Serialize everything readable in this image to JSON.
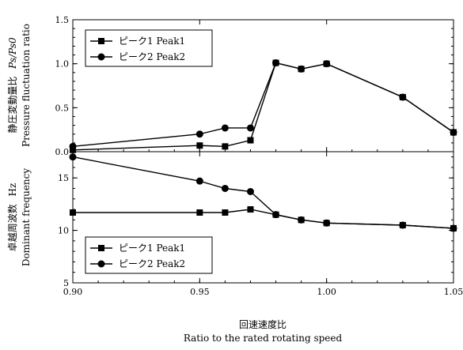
{
  "chart_data": [
    {
      "type": "line",
      "ylabel_jp": "静圧変動量比",
      "ylabel_symbol": "Ps/Ps0",
      "ylabel_en": "Pressure fluctuation ratio",
      "ylim": [
        0,
        1.5
      ],
      "yticks": [
        "0.0",
        "0.5",
        "1.0",
        "1.5"
      ],
      "legend_position": "top-left",
      "series": [
        {
          "name": "ピーク1 Peak1",
          "name_jp": "ピーク1",
          "name_en": "Peak1",
          "marker": "square",
          "x": [
            0.9,
            0.95,
            0.96,
            0.97,
            0.98,
            0.99,
            1.0,
            1.03,
            1.05
          ],
          "y": [
            0.02,
            0.07,
            0.06,
            0.13,
            1.01,
            0.94,
            1.0,
            0.62,
            0.22
          ]
        },
        {
          "name": "ピーク2 Peak2",
          "name_jp": "ピーク2",
          "name_en": "Peak2",
          "marker": "circle",
          "x": [
            0.9,
            0.95,
            0.96,
            0.97,
            0.98,
            0.99,
            1.0,
            1.03,
            1.05
          ],
          "y": [
            0.06,
            0.2,
            0.27,
            0.27,
            1.01,
            0.94,
            1.0,
            0.62,
            0.22
          ]
        }
      ]
    },
    {
      "type": "line",
      "ylabel_jp": "卓越周波数",
      "ylabel_unit": "Hz",
      "ylabel_en": "Dominant frequency",
      "ylim": [
        5,
        17.5
      ],
      "yticks": [
        "5",
        "10",
        "15"
      ],
      "legend_position": "bottom-left",
      "series": [
        {
          "name": "ピーク1 Peak1",
          "name_jp": "ピーク1",
          "name_en": "Peak1",
          "marker": "square",
          "x": [
            0.9,
            0.95,
            0.96,
            0.97,
            0.98,
            0.99,
            1.0,
            1.03,
            1.05
          ],
          "y": [
            11.7,
            11.7,
            11.7,
            12.0,
            11.5,
            11.0,
            10.7,
            10.5,
            10.2
          ]
        },
        {
          "name": "ピーク2 Peak2",
          "name_jp": "ピーク2",
          "name_en": "Peak2",
          "marker": "circle",
          "x": [
            0.9,
            0.95,
            0.96,
            0.97,
            0.98,
            0.99,
            1.0,
            1.03,
            1.05
          ],
          "y": [
            17.0,
            14.7,
            14.0,
            13.7,
            11.5,
            11.0,
            10.7,
            10.5,
            10.2
          ]
        }
      ]
    }
  ],
  "xaxis": {
    "xlim": [
      0.9,
      1.05
    ],
    "ticks": [
      {
        "value": 0.9,
        "label": "0.90"
      },
      {
        "value": 0.95,
        "label": "0.95"
      },
      {
        "value": 1.0,
        "label": "1.00"
      },
      {
        "value": 1.05,
        "label": "1.05"
      }
    ],
    "label_jp": "回速速度比",
    "label_en": "Ratio to the rated rotating speed"
  }
}
